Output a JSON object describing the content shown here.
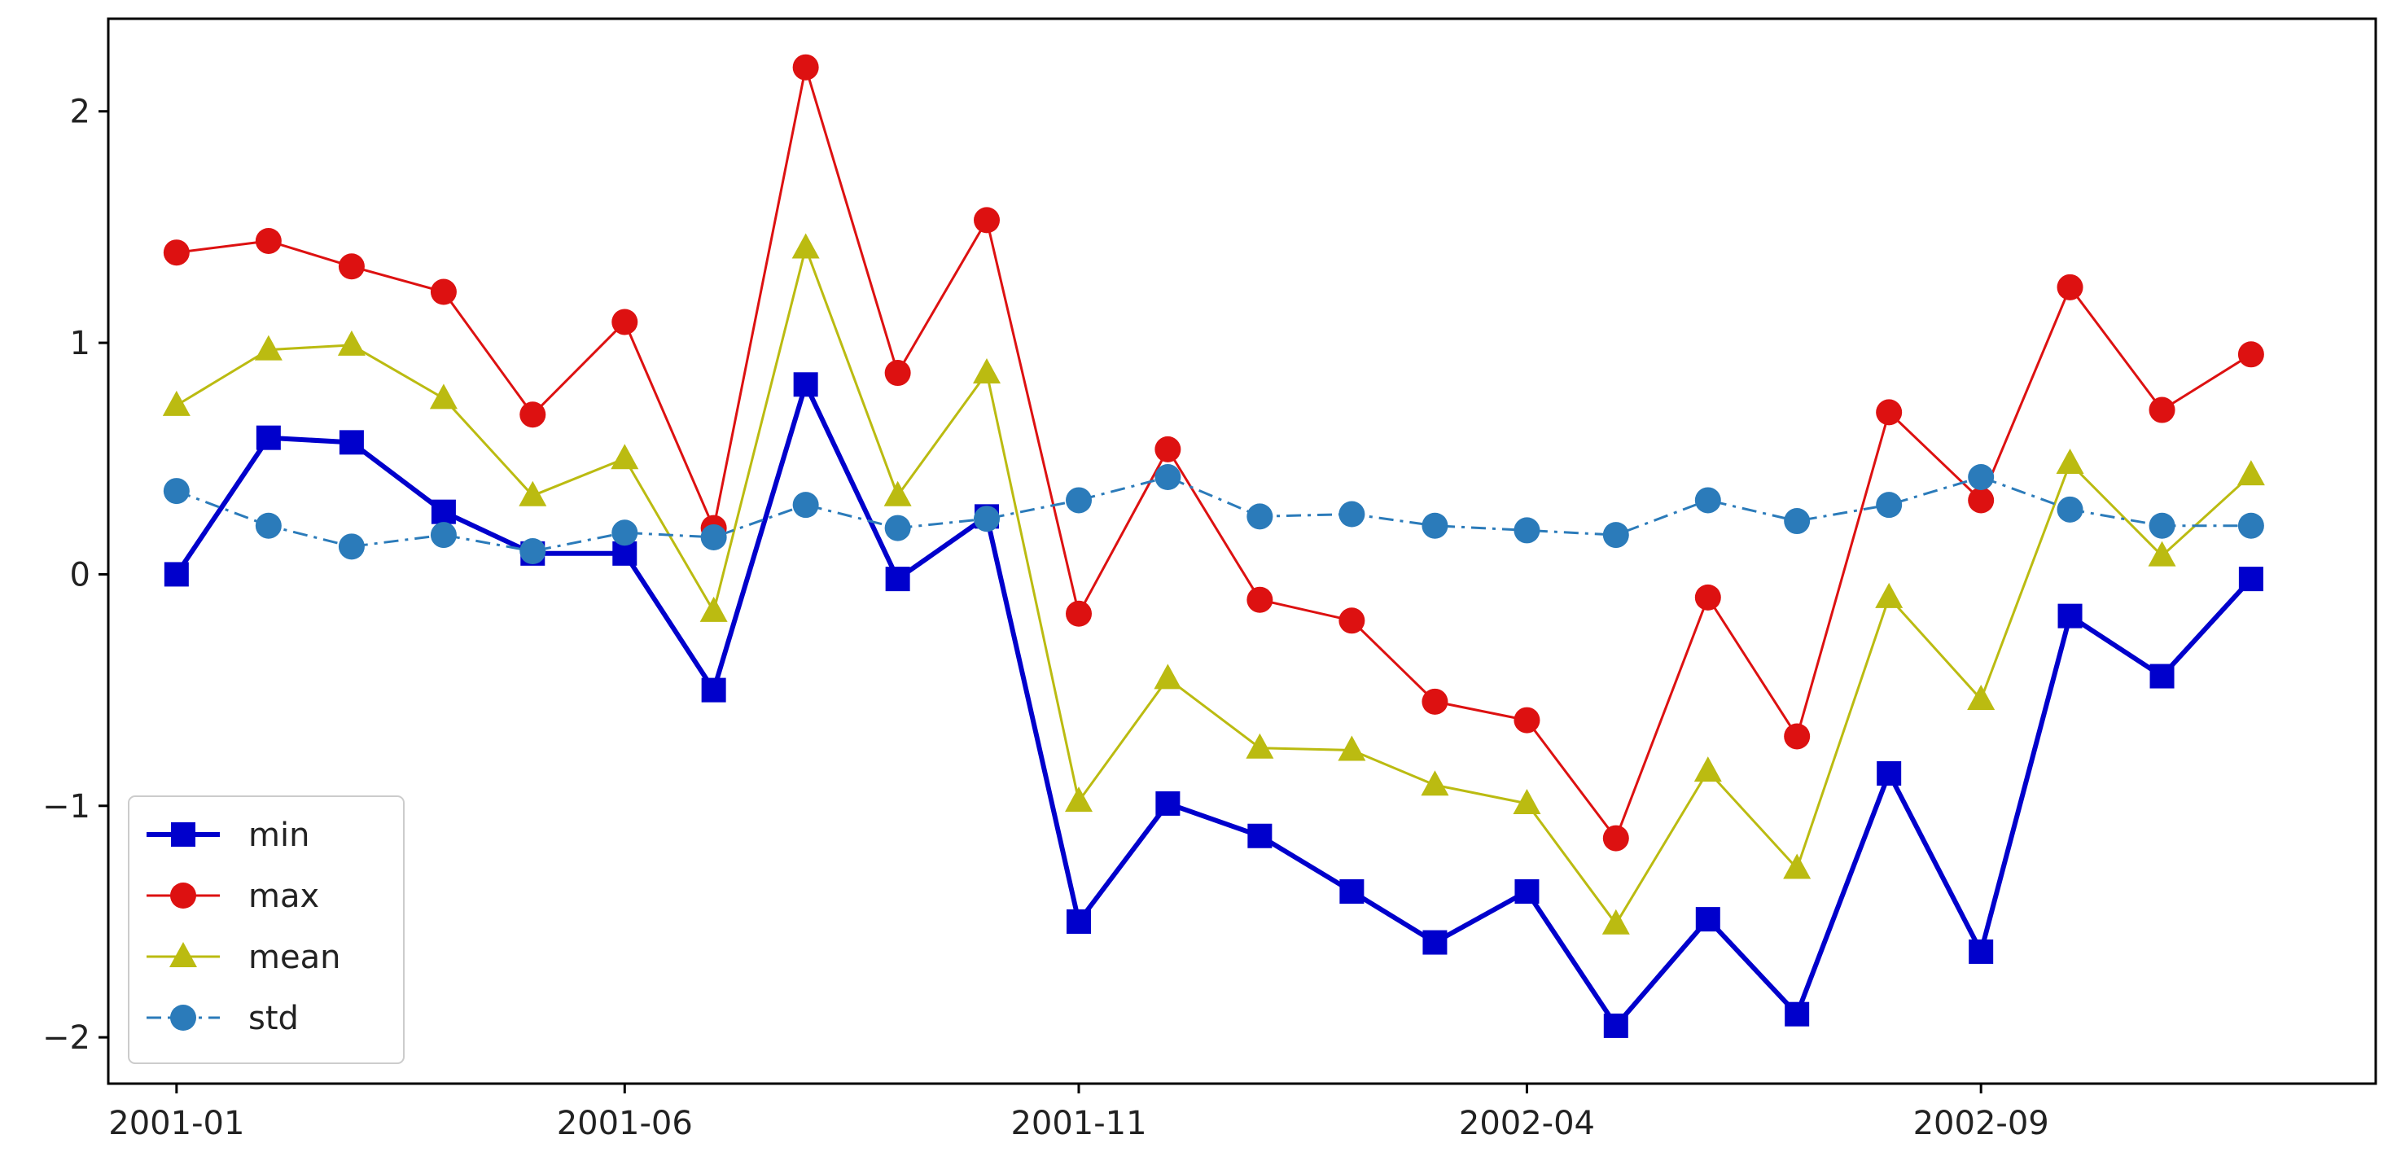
{
  "chart_data": {
    "type": "line",
    "title": "",
    "xlabel": "",
    "ylabel": "",
    "x": [
      "2001-01",
      "2001-02",
      "2001-03",
      "2001-04",
      "2001-05",
      "2001-06",
      "2001-07",
      "2001-08",
      "2001-09",
      "2001-10",
      "2001-11",
      "2001-12",
      "2002-01",
      "2002-02",
      "2002-03",
      "2002-04",
      "2002-05",
      "2002-06",
      "2002-07",
      "2002-08",
      "2002-09",
      "2002-10",
      "2002-11",
      "2002-12"
    ],
    "x_ticks": [
      "2001-01",
      "2001-06",
      "2001-11",
      "2002-04",
      "2002-09"
    ],
    "y_ticks": [
      2,
      1,
      0,
      -1,
      -2
    ],
    "y_tick_labels": [
      "2",
      "1",
      "0",
      "−1",
      "−2"
    ],
    "xlim": [
      "2000-12-09",
      "2003-01-12"
    ],
    "ylim": [
      -2.2,
      2.4
    ],
    "grid": false,
    "legend_position": "lower-left",
    "series": [
      {
        "name": "min",
        "color": "#0000cc",
        "marker": "square",
        "line": "solid",
        "values": [
          0.0,
          0.59,
          0.57,
          0.27,
          0.09,
          0.09,
          -0.5,
          0.82,
          -0.02,
          0.25,
          -1.5,
          -0.99,
          -1.13,
          -1.37,
          -1.59,
          -1.37,
          -1.95,
          -1.49,
          -1.9,
          -0.86,
          -1.63,
          -0.18,
          -0.44,
          -0.02
        ]
      },
      {
        "name": "max",
        "color": "#dd1111",
        "marker": "circle",
        "line": "solid",
        "values": [
          1.39,
          1.44,
          1.33,
          1.22,
          0.69,
          1.09,
          0.2,
          2.19,
          0.87,
          1.53,
          -0.17,
          0.54,
          -0.11,
          -0.2,
          -0.55,
          -0.63,
          -1.14,
          -0.1,
          -0.7,
          0.7,
          0.32,
          1.24,
          0.71,
          0.95
        ]
      },
      {
        "name": "mean",
        "color": "#bbbb11",
        "marker": "triangle",
        "line": "solid",
        "values": [
          0.73,
          0.97,
          0.99,
          0.76,
          0.34,
          0.5,
          -0.16,
          1.41,
          0.34,
          0.87,
          -0.98,
          -0.45,
          -0.75,
          -0.76,
          -0.91,
          -0.99,
          -1.51,
          -0.85,
          -1.27,
          -0.1,
          -0.54,
          0.48,
          0.08,
          0.43
        ]
      },
      {
        "name": "std",
        "color": "#2b7bba",
        "marker": "circle",
        "line": "dashdot",
        "values": [
          0.36,
          0.21,
          0.12,
          0.17,
          0.1,
          0.18,
          0.16,
          0.3,
          0.2,
          0.24,
          0.32,
          0.42,
          0.25,
          0.26,
          0.21,
          0.19,
          0.17,
          0.32,
          0.23,
          0.3,
          0.42,
          0.28,
          0.21,
          0.21
        ]
      }
    ]
  }
}
